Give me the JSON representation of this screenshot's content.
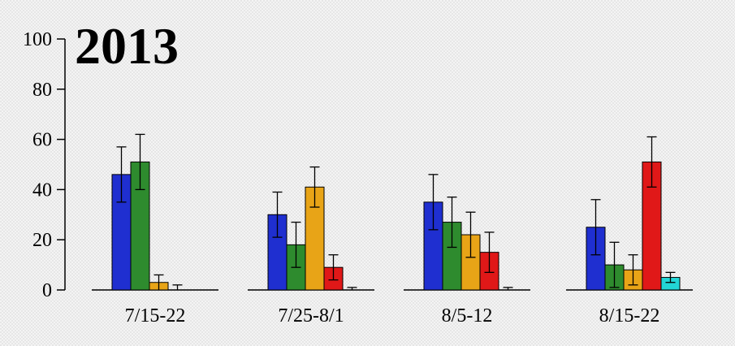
{
  "chart_data": {
    "type": "bar",
    "title": "2013",
    "xlabel": "",
    "ylabel": "",
    "ylim": [
      0,
      100
    ],
    "yticks": [
      0,
      20,
      40,
      60,
      80,
      100
    ],
    "grid": false,
    "categories": [
      "7/15-22",
      "7/25-8/1",
      "8/5-12",
      "8/15-22"
    ],
    "series": [
      {
        "color": "#1f2fd0",
        "values": [
          46,
          30,
          35,
          25
        ],
        "errors": [
          11,
          9,
          11,
          11
        ]
      },
      {
        "color": "#2e8b2e",
        "values": [
          51,
          18,
          27,
          10
        ],
        "errors": [
          11,
          9,
          10,
          9
        ]
      },
      {
        "color": "#e8a417",
        "values": [
          3,
          41,
          22,
          8
        ],
        "errors": [
          3,
          8,
          9,
          6
        ]
      },
      {
        "color": "#e01818",
        "values": [
          0,
          9,
          15,
          51
        ],
        "errors": [
          2,
          5,
          8,
          10
        ]
      },
      {
        "color": "#22d6d6",
        "values": [
          0,
          0,
          0,
          5
        ],
        "errors": [
          0,
          1,
          1,
          2
        ]
      }
    ]
  }
}
